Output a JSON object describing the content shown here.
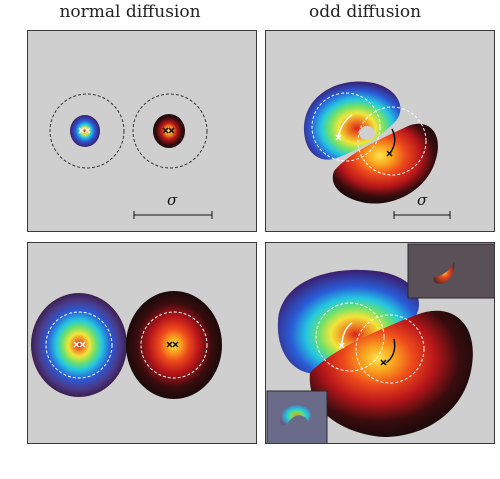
{
  "columns": {
    "left": "normal diffusion",
    "right": "odd diffusion"
  },
  "scale_bar_label": "σ",
  "colors": {
    "panel_bg": "#cfcfcf",
    "jet_species": [
      "#3b1f6e",
      "#2a5bd7",
      "#24c8e0",
      "#6fe06a",
      "#f2e53a",
      "#f08a24",
      "#d8231c"
    ],
    "hot_species": [
      "#1a0a0a",
      "#5a0f12",
      "#b8161a",
      "#ee4a1c",
      "#f9a21e",
      "#fde54a"
    ]
  }
}
